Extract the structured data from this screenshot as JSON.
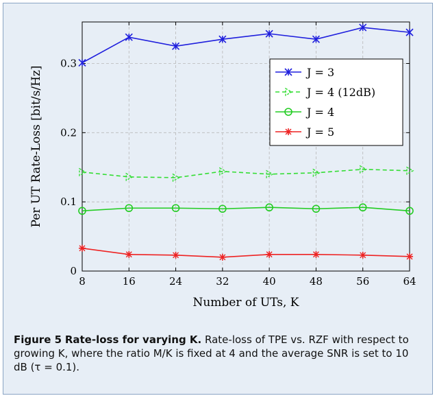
{
  "chart_data": {
    "type": "line",
    "xlabel": "Number of UTs, K",
    "ylabel": "Per UT Rate-Loss [bit/s/Hz]",
    "x": [
      8,
      16,
      24,
      32,
      40,
      48,
      56,
      64
    ],
    "xticks": [
      "8",
      "16",
      "24",
      "32",
      "40",
      "48",
      "56",
      "64"
    ],
    "xlim": [
      8,
      64
    ],
    "ylim": [
      0,
      0.36
    ],
    "yticks": [
      0,
      0.1,
      0.2,
      0.3
    ],
    "ytick_labels": [
      "0",
      "0.1",
      "0.2",
      "0.3"
    ],
    "grid": true,
    "legend_position": "top-right",
    "series": [
      {
        "name": "J = 3",
        "color": "#1f1fdd",
        "marker": "x-star",
        "dashed": false,
        "values": [
          0.301,
          0.338,
          0.325,
          0.335,
          0.343,
          0.335,
          0.352,
          0.345
        ]
      },
      {
        "name": "J = 4 (12dB)",
        "color": "#33dd33",
        "marker": "triangle-right",
        "dashed": true,
        "values": [
          0.143,
          0.136,
          0.135,
          0.144,
          0.14,
          0.142,
          0.147,
          0.145
        ]
      },
      {
        "name": "J = 4",
        "color": "#22cc22",
        "marker": "circle",
        "dashed": false,
        "values": [
          0.087,
          0.091,
          0.091,
          0.09,
          0.092,
          0.09,
          0.092,
          0.087
        ]
      },
      {
        "name": "J = 5",
        "color": "#ee2222",
        "marker": "star",
        "dashed": false,
        "values": [
          0.033,
          0.024,
          0.023,
          0.02,
          0.024,
          0.024,
          0.023,
          0.021
        ]
      }
    ]
  },
  "caption": {
    "label": "Figure 5",
    "title": "Rate-loss for varying K.",
    "text": "Rate-loss of TPE vs. RZF with respect to growing K, where the ratio M/K is fixed at 4 and the average SNR is set to 10 dB (τ = 0.1)."
  }
}
